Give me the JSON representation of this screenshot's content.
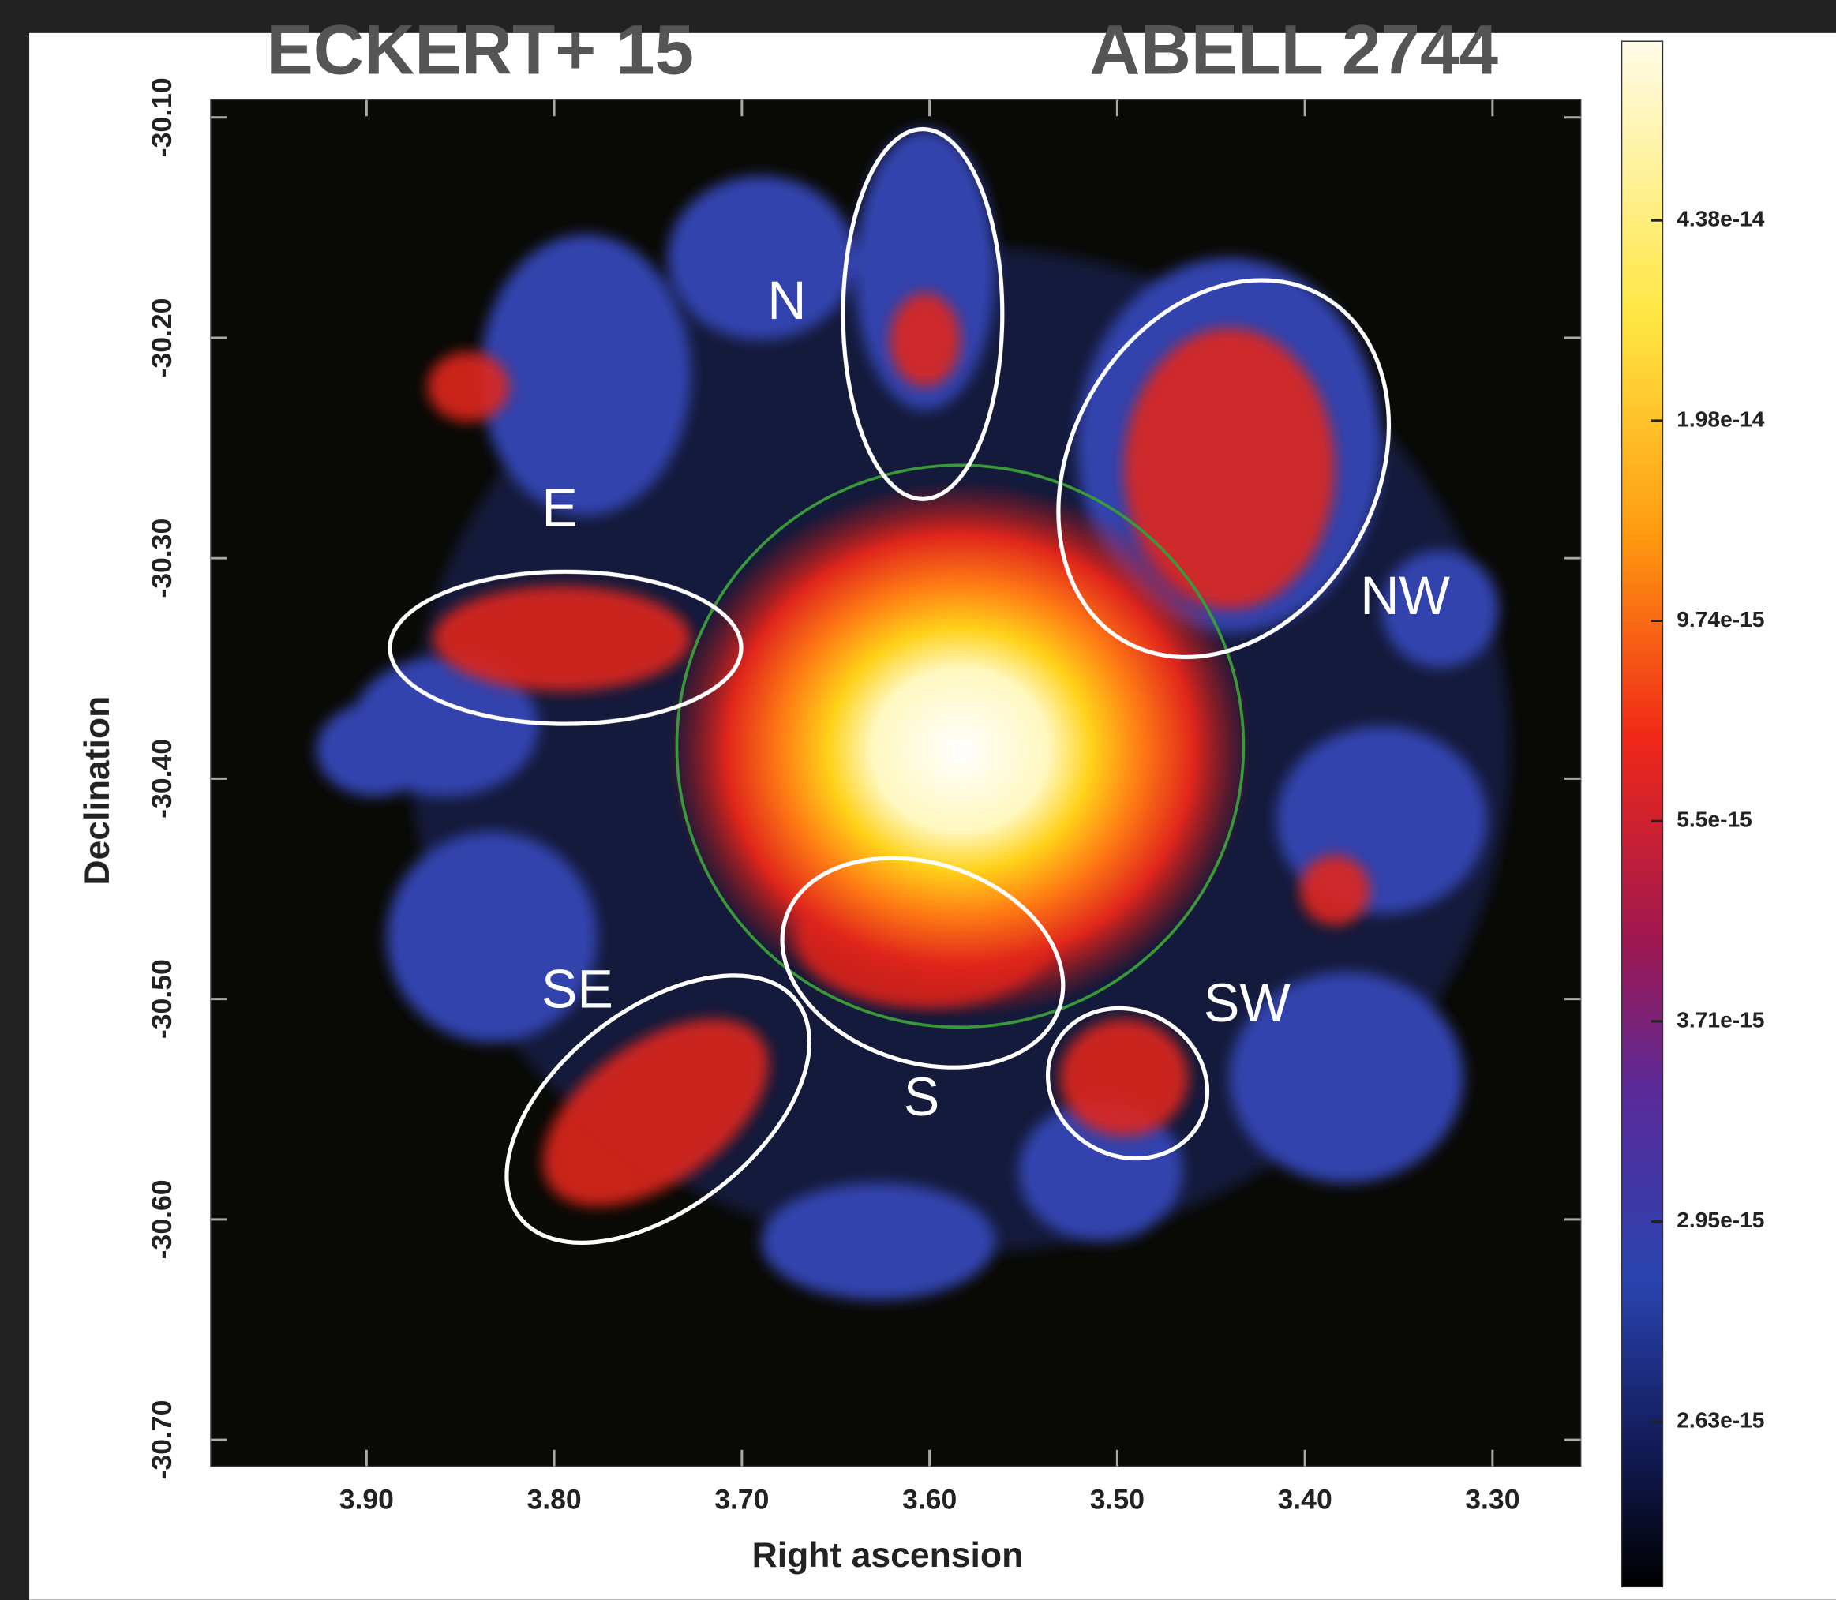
{
  "chart_data": {
    "type": "image",
    "title_left": "ECKERT+ 15",
    "title_right": "ABELL 2744",
    "xlabel": "Right ascension",
    "ylabel": "Declination",
    "xlim": [
      3.983,
      3.253
    ],
    "ylim": [
      -30.712,
      -30.092
    ],
    "xticks": [
      {
        "value": 3.9,
        "label": "3.90"
      },
      {
        "value": 3.8,
        "label": "3.80"
      },
      {
        "value": 3.7,
        "label": "3.70"
      },
      {
        "value": 3.6,
        "label": "3.60"
      },
      {
        "value": 3.5,
        "label": "3.50"
      },
      {
        "value": 3.4,
        "label": "3.40"
      },
      {
        "value": 3.3,
        "label": "3.30"
      }
    ],
    "yticks": [
      {
        "value": -30.1,
        "label": "-30.10"
      },
      {
        "value": -30.2,
        "label": "-30.20"
      },
      {
        "value": -30.3,
        "label": "-30.30"
      },
      {
        "value": -30.4,
        "label": "-30.40"
      },
      {
        "value": -30.5,
        "label": "-30.50"
      },
      {
        "value": -30.6,
        "label": "-30.60"
      },
      {
        "value": -30.7,
        "label": "-30.70"
      }
    ],
    "colorbar_ticks": [
      4.38e-14,
      1.98e-14,
      9.74e-15,
      5.5e-15,
      3.71e-15,
      2.95e-15,
      2.63e-15
    ],
    "annotations": [
      "N",
      "E",
      "NW",
      "SE",
      "S",
      "SW"
    ]
  }
}
